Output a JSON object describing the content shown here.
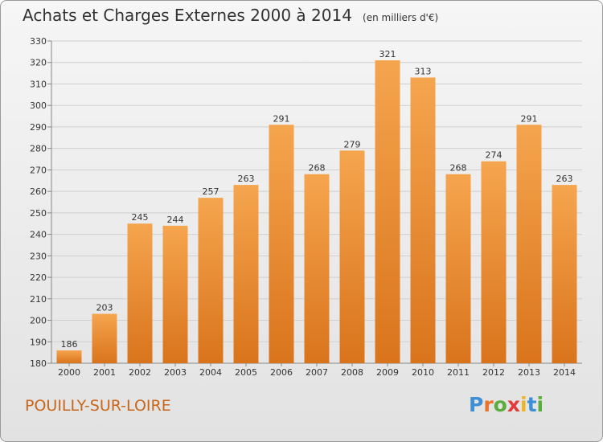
{
  "title": "Achats et Charges Externes 2000 à 2014",
  "unit_note": "(en milliers d'€)",
  "city": "POUILLY-SUR-LOIRE",
  "logo": {
    "text": "Proxiti",
    "letter_colors": [
      "#3d8fd6",
      "#e8732a",
      "#5aad3c",
      "#e23a3a",
      "#f0b323",
      "#3d8fd6",
      "#5aad3c"
    ]
  },
  "colors": {
    "bar_top": "#f5a54e",
    "bar_bottom": "#d9741c",
    "grid": "#cfcfcf",
    "axis_text": "#333333"
  },
  "chart_data": {
    "type": "bar",
    "categories": [
      "2000",
      "2001",
      "2002",
      "2003",
      "2004",
      "2005",
      "2006",
      "2007",
      "2008",
      "2009",
      "2010",
      "2011",
      "2012",
      "2013",
      "2014"
    ],
    "values": [
      186,
      203,
      245,
      244,
      257,
      263,
      291,
      268,
      279,
      321,
      313,
      268,
      274,
      291,
      263
    ],
    "ylim": [
      180,
      330
    ],
    "yticks": [
      180,
      190,
      200,
      210,
      220,
      230,
      240,
      250,
      260,
      270,
      280,
      290,
      300,
      310,
      320,
      330
    ],
    "grid": true,
    "data_labels": true
  }
}
